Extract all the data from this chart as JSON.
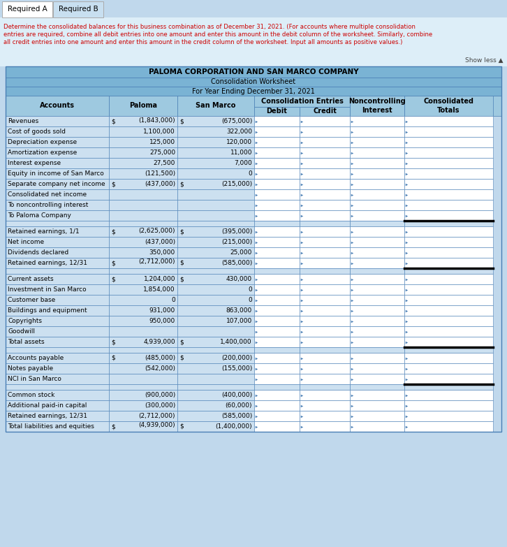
{
  "tab1": "Required A",
  "tab2": "Required B",
  "instruction_lines": [
    "Determine the consolidated balances for this business combination as of December 31, 2021. (For accounts where multiple consolidation",
    "entries are required, combine all debit entries into one amount and enter this amount in the debit column of the worksheet. Similarly, combine",
    "all credit entries into one amount and enter this amount in the credit column of the worksheet. Input all amounts as positive values.)"
  ],
  "show_less": "Show less ▲",
  "title1": "PALOMA CORPORATION AND SAN MARCO COMPANY",
  "title2": "Consolidation Worksheet",
  "title3": "For Year Ending December 31, 2021",
  "header_bg": "#7ab3d4",
  "subheader_bg": "#9ec9e0",
  "row_bg": "#cce0f0",
  "border_color": "#4a7fb5",
  "white": "#ffffff",
  "light_bg": "#ddeef8",
  "page_bg": "#c0d8ec",
  "rows": [
    {
      "account": "Revenues",
      "p": "(1,843,000)",
      "s": "(675,000)",
      "blank": false,
      "thick_after": false,
      "p_dollar_top": true,
      "s_dollar": true
    },
    {
      "account": "Cost of goods sold",
      "p": "1,100,000",
      "s": "322,000",
      "blank": false,
      "thick_after": false,
      "p_dollar_top": false,
      "s_dollar": false
    },
    {
      "account": "Depreciation expense",
      "p": "125,000",
      "s": "120,000",
      "blank": false,
      "thick_after": false,
      "p_dollar_top": false,
      "s_dollar": false
    },
    {
      "account": "Amortization expense",
      "p": "275,000",
      "s": "11,000",
      "blank": false,
      "thick_after": false,
      "p_dollar_top": false,
      "s_dollar": false
    },
    {
      "account": "Interest expense",
      "p": "27,500",
      "s": "7,000",
      "blank": false,
      "thick_after": false,
      "p_dollar_top": false,
      "s_dollar": false
    },
    {
      "account": "Equity in income of San Marco",
      "p": "(121,500)",
      "s": "0",
      "blank": false,
      "thick_after": false,
      "p_dollar_top": false,
      "s_dollar": false
    },
    {
      "account": "Separate company net income",
      "p": "(437,000)",
      "s": "(215,000)",
      "blank": false,
      "thick_after": false,
      "p_dollar_top": false,
      "s_dollar": true,
      "p_dollar_inline": true
    },
    {
      "account": "Consolidated net income",
      "p": "",
      "s": "",
      "blank": false,
      "thick_after": false,
      "p_dollar_top": false,
      "s_dollar": false
    },
    {
      "account": "To noncontrolling interest",
      "p": "",
      "s": "",
      "blank": false,
      "thick_after": false,
      "p_dollar_top": false,
      "s_dollar": false
    },
    {
      "account": "To Paloma Company",
      "p": "",
      "s": "",
      "blank": false,
      "thick_after": true,
      "p_dollar_top": false,
      "s_dollar": false
    },
    {
      "account": "",
      "p": "",
      "s": "",
      "blank": true,
      "thick_after": false,
      "p_dollar_top": false,
      "s_dollar": false
    },
    {
      "account": "Retained earnings, 1/1",
      "p": "(2,625,000)",
      "s": "(395,000)",
      "blank": false,
      "thick_after": false,
      "p_dollar_top": true,
      "s_dollar": true
    },
    {
      "account": "Net income",
      "p": "(437,000)",
      "s": "(215,000)",
      "blank": false,
      "thick_after": false,
      "p_dollar_top": false,
      "s_dollar": false
    },
    {
      "account": "Dividends declared",
      "p": "350,000",
      "s": "25,000",
      "blank": false,
      "thick_after": false,
      "p_dollar_top": false,
      "s_dollar": false
    },
    {
      "account": "Retained earnings, 12/31",
      "p": "(2,712,000)",
      "s": "(585,000)",
      "blank": false,
      "thick_after": true,
      "p_dollar_top": true,
      "s_dollar": true
    },
    {
      "account": "",
      "p": "",
      "s": "",
      "blank": true,
      "thick_after": false,
      "p_dollar_top": false,
      "s_dollar": false
    },
    {
      "account": "Current assets",
      "p": "1,204,000",
      "s": "430,000",
      "blank": false,
      "thick_after": false,
      "p_dollar_top": false,
      "s_dollar": true,
      "p_dollar_inline": true
    },
    {
      "account": "Investment in San Marco",
      "p": "1,854,000",
      "s": "0",
      "blank": false,
      "thick_after": false,
      "p_dollar_top": false,
      "s_dollar": false
    },
    {
      "account": "Customer base",
      "p": "0",
      "s": "0",
      "blank": false,
      "thick_after": false,
      "p_dollar_top": false,
      "s_dollar": false
    },
    {
      "account": "Buildings and equipment",
      "p": "931,000",
      "s": "863,000",
      "blank": false,
      "thick_after": false,
      "p_dollar_top": false,
      "s_dollar": false
    },
    {
      "account": "Copyrights",
      "p": "950,000",
      "s": "107,000",
      "blank": false,
      "thick_after": false,
      "p_dollar_top": false,
      "s_dollar": false
    },
    {
      "account": "Goodwill",
      "p": "",
      "s": "",
      "blank": false,
      "thick_after": false,
      "p_dollar_top": false,
      "s_dollar": false
    },
    {
      "account": "Total assets",
      "p": "4,939,000",
      "s": "1,400,000",
      "blank": false,
      "thick_after": true,
      "p_dollar_top": false,
      "s_dollar": true,
      "p_dollar_inline": true
    },
    {
      "account": "",
      "p": "",
      "s": "",
      "blank": true,
      "thick_after": false,
      "p_dollar_top": false,
      "s_dollar": false
    },
    {
      "account": "Accounts payable",
      "p": "(485,000)",
      "s": "(200,000)",
      "blank": false,
      "thick_after": false,
      "p_dollar_top": false,
      "s_dollar": true,
      "p_dollar_inline": true
    },
    {
      "account": "Notes payable",
      "p": "(542,000)",
      "s": "(155,000)",
      "blank": false,
      "thick_after": false,
      "p_dollar_top": false,
      "s_dollar": false
    },
    {
      "account": "NCI in San Marco",
      "p": "",
      "s": "",
      "blank": false,
      "thick_after": true,
      "p_dollar_top": false,
      "s_dollar": false
    },
    {
      "account": "",
      "p": "",
      "s": "",
      "blank": true,
      "thick_after": false,
      "p_dollar_top": false,
      "s_dollar": false
    },
    {
      "account": "Common stock",
      "p": "(900,000)",
      "s": "(400,000)",
      "blank": false,
      "thick_after": false,
      "p_dollar_top": false,
      "s_dollar": false
    },
    {
      "account": "Additional paid-in capital",
      "p": "(300,000)",
      "s": "(60,000)",
      "blank": false,
      "thick_after": false,
      "p_dollar_top": false,
      "s_dollar": false
    },
    {
      "account": "Retained earnings, 12/31",
      "p": "(2,712,000)",
      "s": "(585,000)",
      "blank": false,
      "thick_after": false,
      "p_dollar_top": false,
      "s_dollar": false
    },
    {
      "account": "Total liabilities and equities",
      "p": "(4,939,000)",
      "s": "(1,400,000)",
      "blank": false,
      "thick_after": false,
      "p_dollar_top": true,
      "s_dollar": true
    }
  ]
}
